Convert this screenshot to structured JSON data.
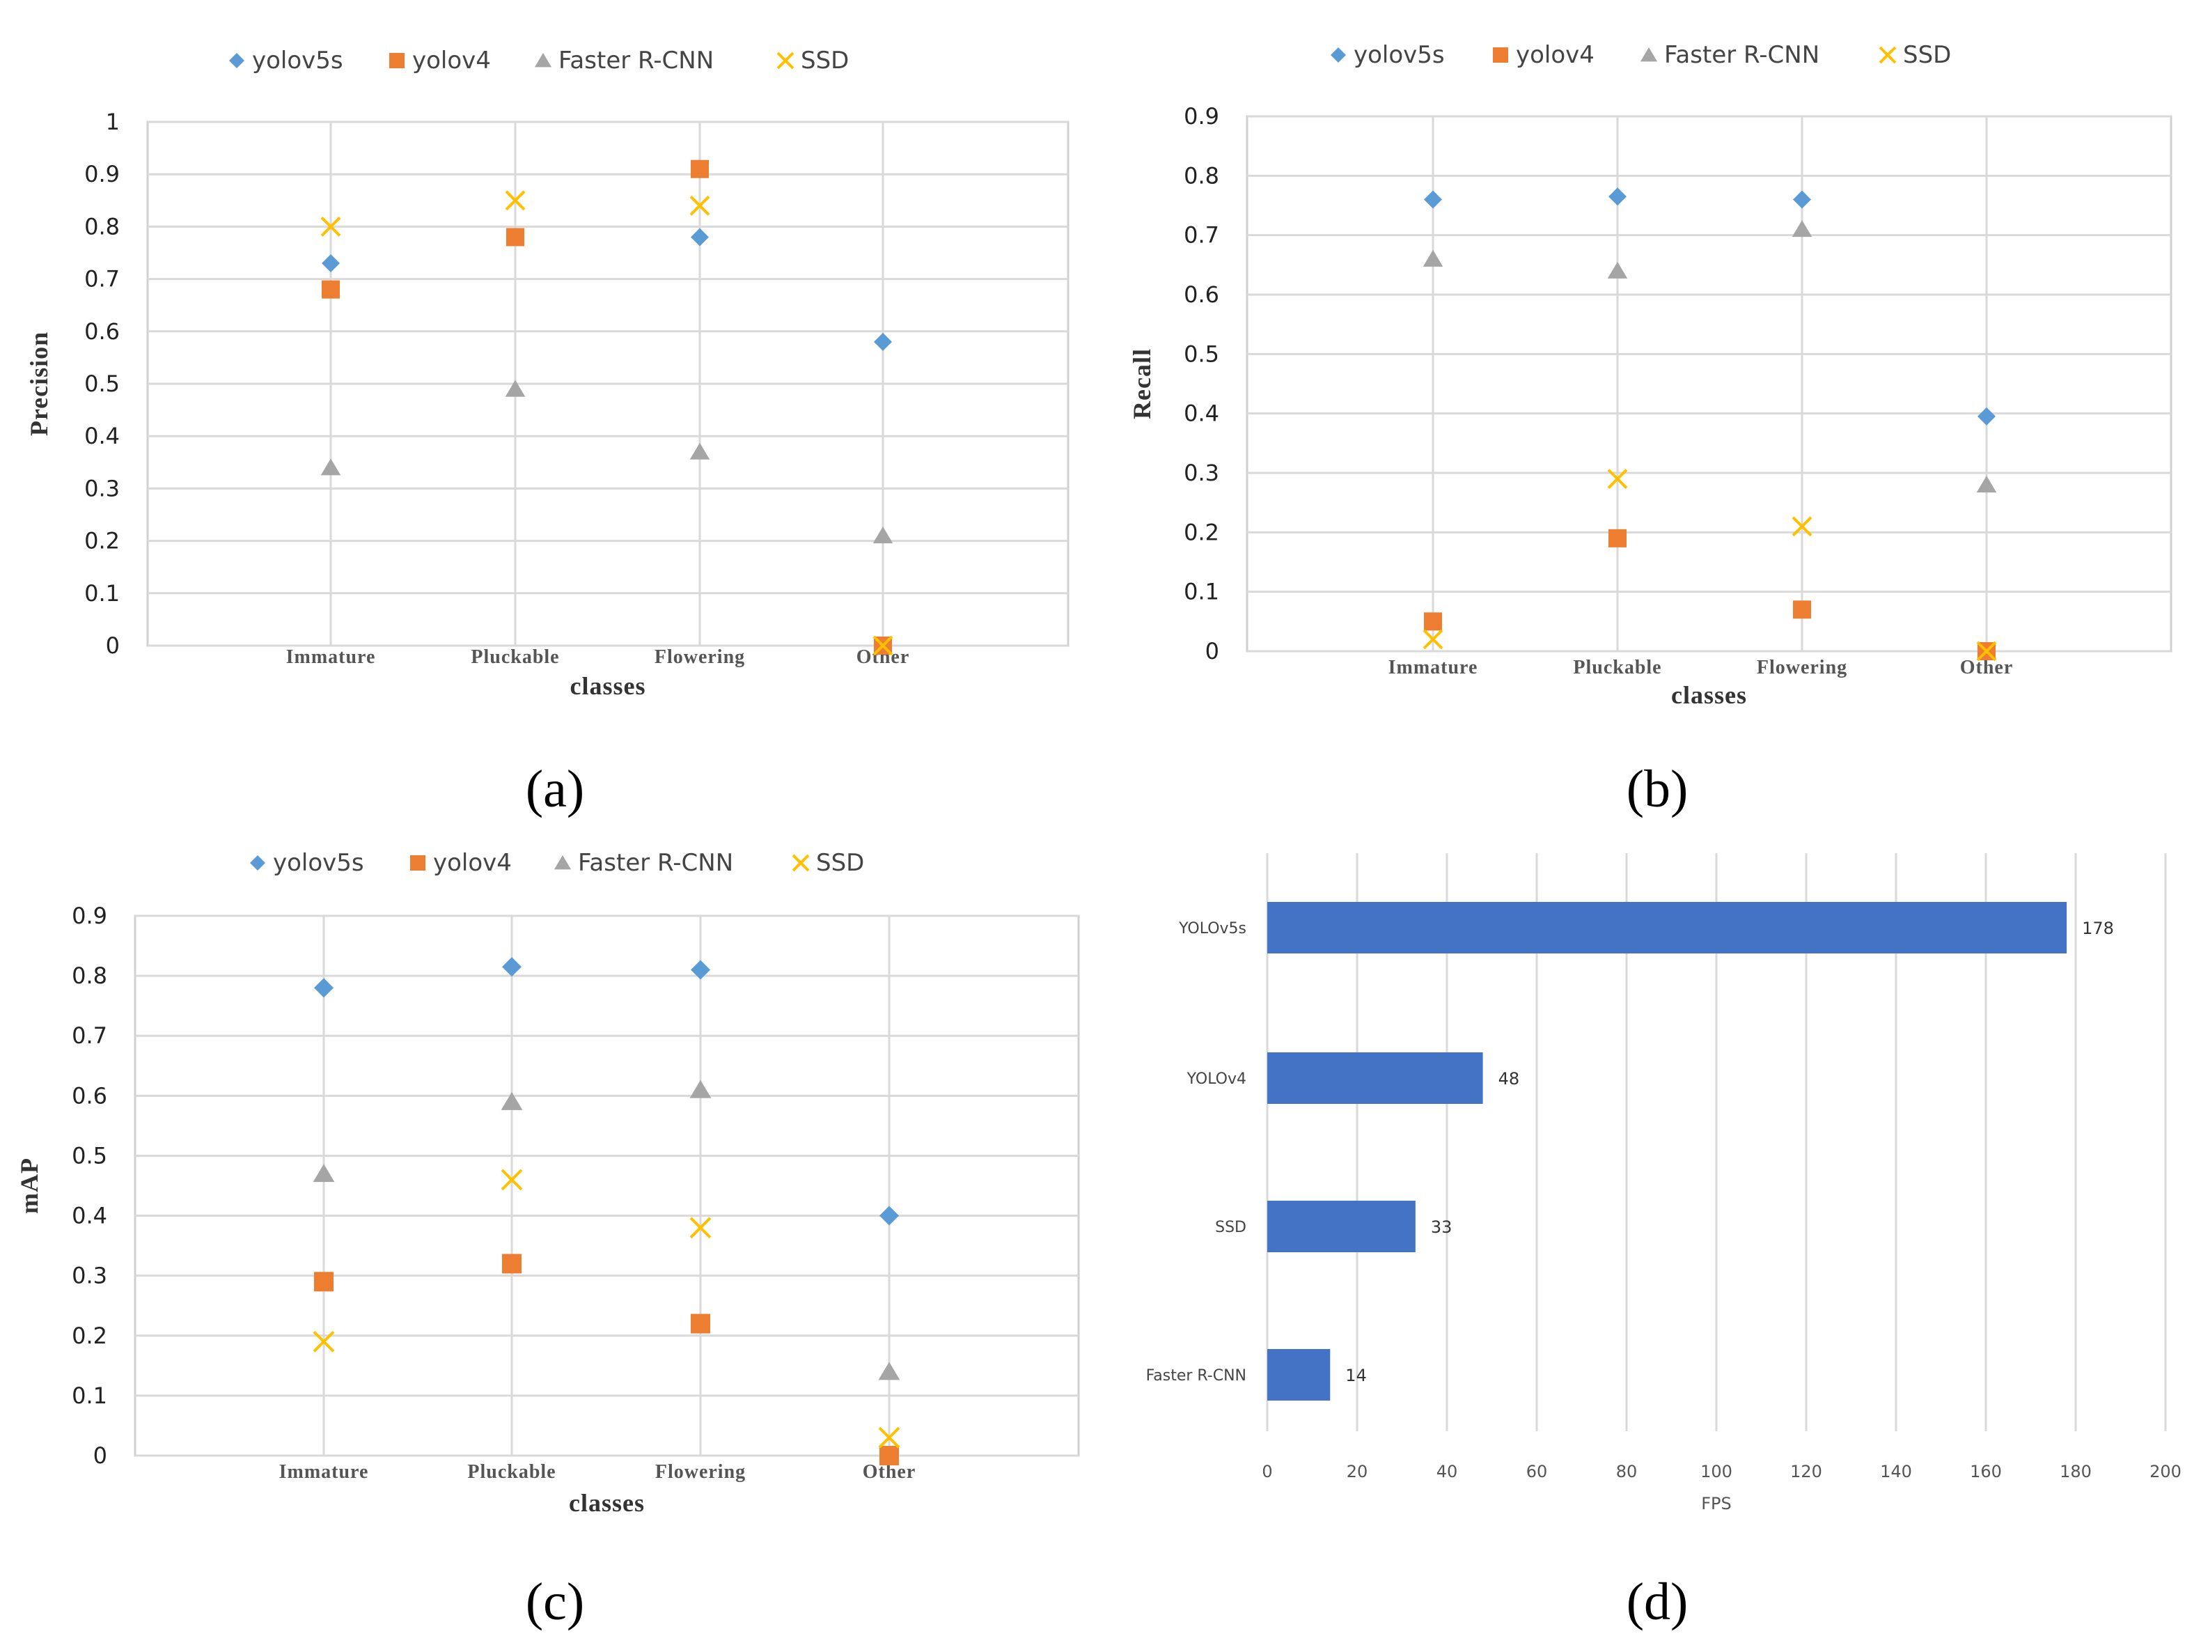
{
  "colors": {
    "yolov5s": "#5b9bd5",
    "yolov4": "#ed7d31",
    "faster_rcnn": "#a5a5a5",
    "ssd": "#ffc000",
    "bar": "#4472c4",
    "grid": "#d9d9d9",
    "plot_border": "#d0d0d0"
  },
  "series_names": [
    "yolov5s",
    "yolov4",
    "Faster R-CNN",
    "SSD"
  ],
  "chart_data": [
    {
      "id": "a",
      "panel_label": "(a)",
      "type": "scatter",
      "categories": [
        "Immature",
        "Pluckable",
        "Flowering",
        "Other"
      ],
      "xlabel": "classes",
      "ylabel": "Precision",
      "ylim": [
        0,
        1
      ],
      "yticks": [
        "0",
        "0.1",
        "0.2",
        "0.3",
        "0.4",
        "0.5",
        "0.6",
        "0.7",
        "0.8",
        "0.9",
        "1"
      ],
      "series": [
        {
          "name": "yolov5s",
          "marker": "diamond",
          "values": [
            0.73,
            0.78,
            0.78,
            0.58
          ]
        },
        {
          "name": "yolov4",
          "marker": "square",
          "values": [
            0.68,
            0.78,
            0.91,
            0.0
          ]
        },
        {
          "name": "Faster R-CNN",
          "marker": "triangle",
          "values": [
            0.34,
            0.49,
            0.37,
            0.21
          ]
        },
        {
          "name": "SSD",
          "marker": "x",
          "values": [
            0.8,
            0.85,
            0.84,
            0.0
          ]
        }
      ]
    },
    {
      "id": "b",
      "panel_label": "(b)",
      "type": "scatter",
      "categories": [
        "Immature",
        "Pluckable",
        "Flowering",
        "Other"
      ],
      "xlabel": "classes",
      "ylabel": "Recall",
      "ylim": [
        0,
        0.9
      ],
      "yticks": [
        "0",
        "0.1",
        "0.2",
        "0.3",
        "0.4",
        "0.5",
        "0.6",
        "0.7",
        "0.8",
        "0.9"
      ],
      "series": [
        {
          "name": "yolov5s",
          "marker": "diamond",
          "values": [
            0.76,
            0.765,
            0.76,
            0.395
          ]
        },
        {
          "name": "yolov4",
          "marker": "square",
          "values": [
            0.05,
            0.19,
            0.07,
            0.0
          ]
        },
        {
          "name": "Faster R-CNN",
          "marker": "triangle",
          "values": [
            0.66,
            0.64,
            0.71,
            0.28
          ]
        },
        {
          "name": "SSD",
          "marker": "x",
          "values": [
            0.02,
            0.29,
            0.21,
            0.0
          ]
        }
      ]
    },
    {
      "id": "c",
      "panel_label": "(c)",
      "type": "scatter",
      "categories": [
        "Immature",
        "Pluckable",
        "Flowering",
        "Other"
      ],
      "xlabel": "classes",
      "ylabel": "mAP",
      "ylim": [
        0,
        0.9
      ],
      "yticks": [
        "0",
        "0.1",
        "0.2",
        "0.3",
        "0.4",
        "0.5",
        "0.6",
        "0.7",
        "0.8",
        "0.9"
      ],
      "series": [
        {
          "name": "yolov5s",
          "marker": "diamond",
          "values": [
            0.78,
            0.815,
            0.81,
            0.4
          ]
        },
        {
          "name": "yolov4",
          "marker": "square",
          "values": [
            0.29,
            0.32,
            0.22,
            0.0
          ]
        },
        {
          "name": "Faster R-CNN",
          "marker": "triangle",
          "values": [
            0.47,
            0.59,
            0.61,
            0.14
          ]
        },
        {
          "name": "SSD",
          "marker": "x",
          "values": [
            0.19,
            0.46,
            0.38,
            0.03
          ]
        }
      ]
    },
    {
      "id": "d",
      "panel_label": "(d)",
      "type": "bar",
      "orientation": "horizontal",
      "categories": [
        "YOLOv5s",
        "YOLOv4",
        "SSD",
        "Faster R-CNN"
      ],
      "values": [
        178,
        48,
        33,
        14
      ],
      "value_labels": [
        "178",
        "48",
        "33",
        "14"
      ],
      "xlabel": "FPS",
      "xlim": [
        0,
        200
      ],
      "xticks": [
        "0",
        "20",
        "40",
        "60",
        "80",
        "100",
        "120",
        "140",
        "160",
        "180",
        "200"
      ]
    }
  ]
}
